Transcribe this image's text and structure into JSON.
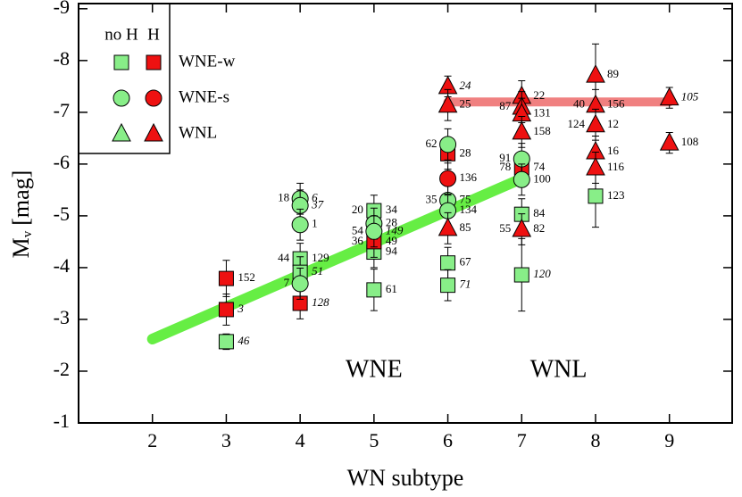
{
  "chart_data": {
    "type": "scatter",
    "x_label": "WN subtype",
    "y_label": {
      "main": "M",
      "sub": "v",
      "rest": "[mag]"
    },
    "xlim": [
      1,
      9.85
    ],
    "ylim": [
      -1,
      -9.1
    ],
    "xticks": [
      2,
      3,
      4,
      5,
      6,
      7,
      8,
      9
    ],
    "yticks": [
      -1,
      -2,
      -3,
      -4,
      -5,
      -6,
      -7,
      -8,
      -9
    ],
    "legend": {
      "columns": [
        "no H",
        "H"
      ],
      "rows": [
        "WNE-w",
        "WNE-s",
        "WNL"
      ]
    },
    "annotations": [
      "WNE",
      "WNL"
    ],
    "fits": [
      {
        "color": "#66ee44",
        "x": [
          2,
          7
        ],
        "y": [
          -2.62,
          -5.72
        ]
      },
      {
        "color": "#f08080",
        "x": [
          6,
          9
        ],
        "y": [
          -7.2,
          -7.2
        ]
      }
    ],
    "series": [
      {
        "marker": "square",
        "color": "#88ee88",
        "x": [
          3,
          4,
          4,
          5,
          5,
          5,
          6,
          6,
          7,
          7,
          8
        ],
        "y": [
          -2.57,
          -4.17,
          -3.91,
          -5.1,
          -4.3,
          -3.57,
          -4.09,
          -3.66,
          -5.03,
          -3.86,
          -5.38
        ],
        "err": [
          0.15,
          0.3,
          0.3,
          0.3,
          0.3,
          0.4,
          0.3,
          0.3,
          0.3,
          0.7,
          0.6
        ],
        "labels": [
          "46",
          "129",
          "51",
          "34",
          "94",
          "61",
          "67",
          "71",
          "84",
          "120",
          "123"
        ],
        "left_labels": [
          null,
          "44",
          null,
          "20",
          null,
          null,
          null,
          null,
          null,
          null,
          null
        ],
        "italic": [
          true,
          false,
          true,
          false,
          false,
          false,
          false,
          true,
          false,
          true,
          false
        ]
      },
      {
        "marker": "square",
        "color": "#ee1111",
        "x": [
          3,
          3,
          4,
          5,
          6,
          7
        ],
        "y": [
          -3.79,
          -3.19,
          -3.31,
          -4.5,
          -6.2,
          -5.93
        ],
        "err": [
          0.35,
          0.3,
          0.3,
          0.3,
          0.3,
          0.3
        ],
        "labels": [
          "152",
          "3",
          "128",
          "49",
          "28",
          "74"
        ],
        "left_labels": [
          null,
          null,
          null,
          "36",
          null,
          "78"
        ],
        "italic": [
          false,
          true,
          true,
          false,
          false,
          false
        ]
      },
      {
        "marker": "circle",
        "color": "#88ee88",
        "x": [
          4,
          4,
          4,
          4,
          5,
          5,
          6,
          6,
          6,
          7,
          7
        ],
        "y": [
          -5.33,
          -5.2,
          -4.83,
          -3.69,
          -4.85,
          -4.7,
          -6.38,
          -5.3,
          -5.1,
          -6.1,
          -5.7
        ],
        "err": [
          0.3,
          0.3,
          0.3,
          0.3,
          0.3,
          0.3,
          0.3,
          0.3,
          0.3,
          0.3,
          0.3
        ],
        "labels": [
          "6",
          "37",
          "1",
          null,
          "28",
          "149",
          null,
          "75",
          "134",
          null,
          "100"
        ],
        "left_labels": [
          "18",
          null,
          null,
          "7",
          null,
          "54",
          "62",
          "35",
          null,
          "91",
          null
        ],
        "italic": [
          true,
          true,
          false,
          false,
          false,
          true,
          false,
          false,
          false,
          false,
          false
        ]
      },
      {
        "marker": "circle",
        "color": "#ee1111",
        "x": [
          6
        ],
        "y": [
          -5.72
        ],
        "err": [
          0.3
        ],
        "labels": [
          "136"
        ],
        "left_labels": [
          null
        ],
        "italic": [
          false
        ]
      },
      {
        "marker": "triangle",
        "color": "#88ee88",
        "x": [],
        "y": [],
        "err": [],
        "labels": [],
        "left_labels": [],
        "italic": []
      },
      {
        "marker": "triangle",
        "color": "#ee1111",
        "x": [
          6,
          6,
          6,
          7,
          7,
          7,
          7,
          7,
          8,
          8,
          8,
          8,
          8,
          9,
          9
        ],
        "y": [
          -7.5,
          -7.14,
          -4.76,
          -7.31,
          -7.1,
          -6.97,
          -6.62,
          -4.74,
          -7.72,
          -7.14,
          -6.76,
          -6.24,
          -5.93,
          -7.28,
          -6.41
        ],
        "err": [
          0.2,
          0.3,
          0.3,
          0.3,
          0.3,
          0.3,
          0.3,
          0.3,
          0.6,
          0.3,
          0.3,
          0.3,
          0.3,
          0.2,
          0.2
        ],
        "labels": [
          "24",
          "25",
          "85",
          "22",
          null,
          "131",
          "158",
          "82",
          "89",
          "156",
          "12",
          "16",
          "116",
          "105",
          "108"
        ],
        "left_labels": [
          null,
          null,
          null,
          null,
          "87",
          null,
          null,
          "55",
          null,
          "40",
          "124",
          null,
          null,
          null,
          null
        ],
        "italic": [
          true,
          false,
          false,
          false,
          false,
          false,
          false,
          false,
          false,
          false,
          false,
          false,
          false,
          true,
          false
        ]
      }
    ]
  }
}
